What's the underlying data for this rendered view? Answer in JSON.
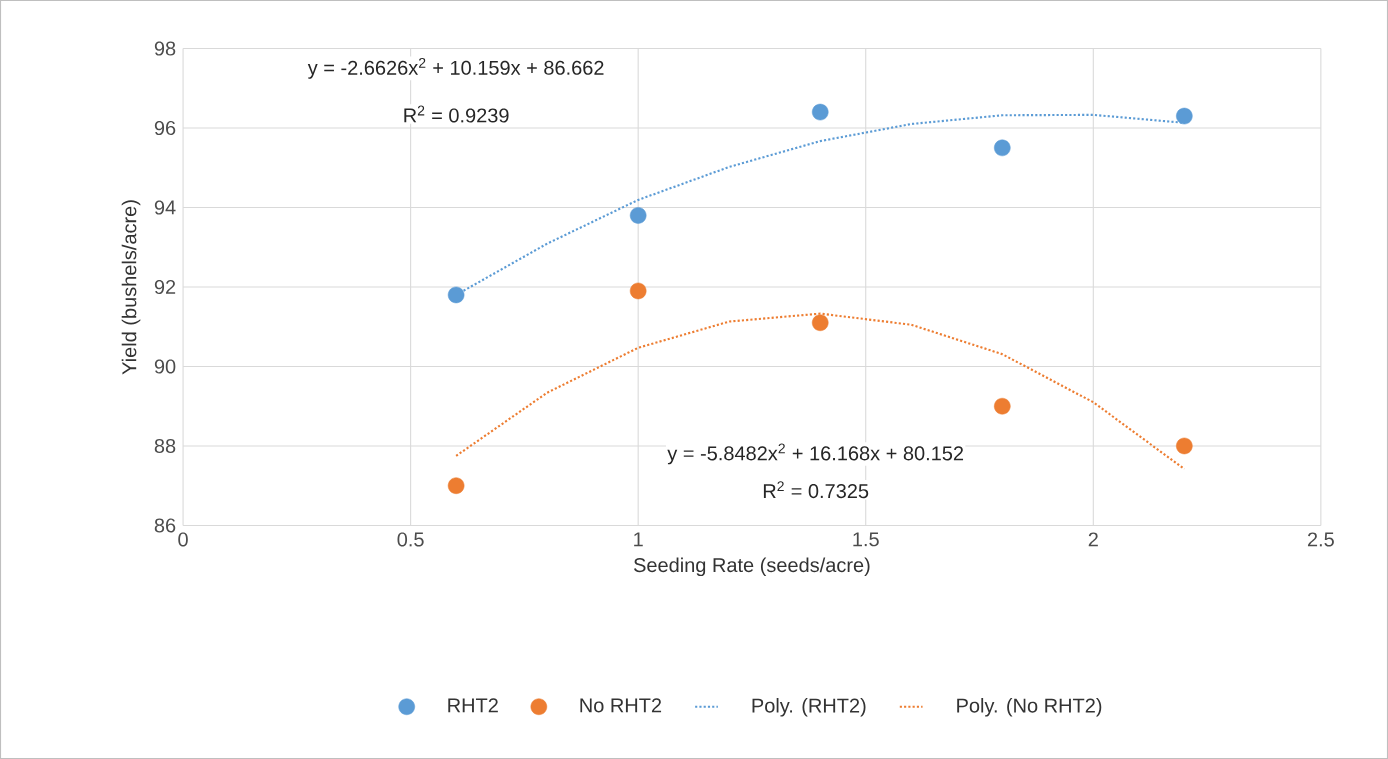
{
  "chart_data": {
    "type": "scatter",
    "xlabel": "Seeding Rate (seeds/acre)",
    "ylabel": "Yield (bushels/acre)",
    "xlim": [
      0,
      2.5
    ],
    "xticks": [
      0,
      0.5,
      1,
      1.5,
      2,
      2.5
    ],
    "ylim": [
      86,
      98
    ],
    "yticks": [
      86,
      88,
      90,
      92,
      94,
      96,
      98
    ],
    "grid": true,
    "legend": "bottom",
    "marker": "circle",
    "series": [
      {
        "name": "RHT2",
        "color": "#5b9bd5",
        "x": [
          0.6,
          1,
          1.4,
          1.8,
          2.2
        ],
        "values": [
          91.8,
          93.8,
          96.4,
          95.5,
          96.3
        ]
      },
      {
        "name": "No RHT2",
        "color": "#ed7d31",
        "x": [
          0.6,
          1,
          1.4,
          1.8,
          2.2
        ],
        "values": [
          87.0,
          91.9,
          91.1,
          89.0,
          88.0
        ]
      },
      {
        "name": "Poly. (RHT2)",
        "type": "line",
        "line_style": "dotted",
        "marker": "none",
        "color": "#5b9bd5",
        "x": [
          0.6,
          0.8,
          1,
          1.2,
          1.4,
          1.6,
          1.8,
          2.0,
          2.2
        ],
        "values": [
          91.8,
          93.09,
          94.19,
          95.02,
          95.67,
          96.1,
          96.32,
          96.33,
          96.13
        ]
      },
      {
        "name": "Poly. (No RHT2)",
        "type": "line",
        "line_style": "dotted",
        "marker": "none",
        "color": "#ed7d31",
        "x": [
          0.6,
          0.8,
          1,
          1.2,
          1.4,
          1.6,
          1.8,
          2.0,
          2.2
        ],
        "values": [
          87.75,
          89.34,
          90.47,
          91.13,
          91.33,
          91.05,
          90.31,
          89.1,
          87.42
        ]
      }
    ],
    "annotations": [
      "y = -2.6626x$^{2}$ + 10.159x + 86.662",
      "R$^{2}$ = 0.9239",
      "y = -5.8482x$^{2}$ + 16.168x + 80.152",
      "R$^{2}$ = 0.7325"
    ]
  }
}
